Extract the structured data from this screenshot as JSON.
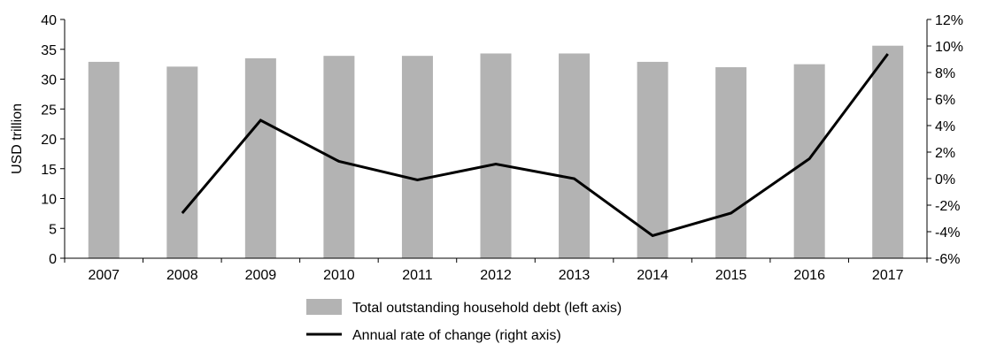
{
  "chart_data": {
    "type": "bar",
    "categories": [
      "2007",
      "2008",
      "2009",
      "2010",
      "2011",
      "2012",
      "2013",
      "2014",
      "2015",
      "2016",
      "2017"
    ],
    "series": [
      {
        "name": "Total outstanding household debt (left axis)",
        "type": "bar",
        "axis": "left",
        "color": "#b3b3b3",
        "values": [
          32.9,
          32.1,
          33.5,
          33.9,
          33.9,
          34.3,
          34.3,
          32.9,
          32.0,
          32.5,
          35.6
        ]
      },
      {
        "name": "Annual rate of change (right axis)",
        "type": "line",
        "axis": "right",
        "color": "#000000",
        "values": [
          null,
          -2.6,
          4.4,
          1.3,
          -0.1,
          1.1,
          0.0,
          -4.3,
          -2.6,
          1.5,
          9.4
        ]
      }
    ],
    "ylabel": "USD trillion",
    "ylim": [
      0,
      40
    ],
    "y_ticks": [
      "0",
      "5",
      "10",
      "15",
      "20",
      "25",
      "30",
      "35",
      "40"
    ],
    "y2lim": [
      -6,
      12
    ],
    "y2_ticks": [
      "-6%",
      "-4%",
      "-2%",
      "0%",
      "2%",
      "4%",
      "6%",
      "8%",
      "10%",
      "12%"
    ],
    "legend_position": "bottom-center",
    "grid": false
  }
}
